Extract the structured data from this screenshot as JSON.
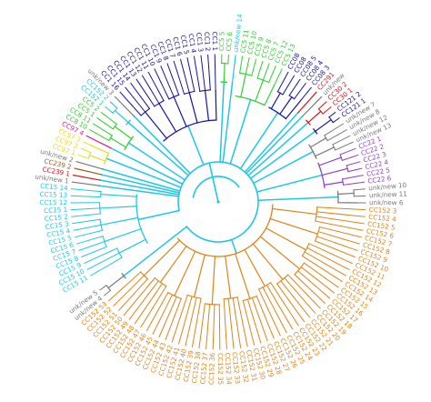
{
  "tree": {
    "colors": {
      "cyan": "#1fc7e6",
      "green": "#2fcf2f",
      "navy": "#14149e",
      "red": "#d8161b",
      "magenta": "#d81b8f",
      "purple": "#8f3fd0",
      "gray": "#7a7a7a",
      "orange": "#e08318",
      "brown": "#a35a18",
      "yellow": "#e8dc20"
    },
    "clades": [
      {
        "color": "cyan",
        "labels": [
          "CC15 11",
          "CC15 10",
          "CC15 9",
          "CC15 8",
          "CC15 7",
          "CC15 6",
          "CC15 5",
          "CC15 4",
          "CC15 3",
          "CC15 2",
          "CC15 1",
          "CC15 12",
          "CC15 13",
          "CC15 14"
        ]
      },
      {
        "color": "gray",
        "labels": [
          "unk/new 1"
        ]
      },
      {
        "color": "red",
        "labels": [
          "CC239 1"
        ]
      },
      {
        "color": "brown",
        "labels": [
          "CC239 2"
        ]
      },
      {
        "color": "gray",
        "labels": [
          "unk/new 2"
        ]
      },
      {
        "color": "yellow",
        "labels": [
          "CC97 1",
          "CC97 2",
          "CC97 3"
        ]
      },
      {
        "color": "magenta",
        "labels": [
          "CC97 4"
        ]
      },
      {
        "color": "green",
        "labels": [
          "CC8 10",
          "CC8 11",
          "CC5 1",
          "CC5 2"
        ]
      },
      {
        "color": "cyan",
        "labels": [
          "CC152 1",
          "CC152 2"
        ]
      },
      {
        "color": "gray",
        "labels": [
          "unk/new 3"
        ]
      },
      {
        "color": "navy",
        "labels": [
          "CC1 16",
          "CC1 15",
          "CC1 14",
          "CC1 13",
          "CC1 12",
          "CC1 11",
          "CC1 10",
          "CC1 9",
          "CC1 8",
          "CC1 7",
          "CC1 6",
          "CC1 5",
          "CC1 4",
          "CC1 3",
          "CC1 2",
          "CC1 1"
        ]
      },
      {
        "color": "green",
        "labels": [
          "CC5 5",
          "CC5 6"
        ]
      },
      {
        "color": "cyan",
        "labels": [
          "unk/new 14"
        ]
      },
      {
        "color": "green",
        "labels": [
          "CC5 11",
          "CC5 10",
          "CC5 9",
          "CC5 8",
          "CC5 7",
          "CC5 12",
          "CC5 13"
        ]
      },
      {
        "color": "navy",
        "labels": [
          "CC08",
          "CC08",
          "CC08 5",
          "CC08 4",
          "CC08 3"
        ]
      },
      {
        "color": "red",
        "labels": [
          "CC291"
        ]
      },
      {
        "color": "gray",
        "labels": [
          "unk/new"
        ]
      },
      {
        "color": "red",
        "labels": [
          "CC30 2",
          "CC30 1"
        ]
      },
      {
        "color": "navy",
        "labels": [
          "CC121 2",
          "CC121 1"
        ]
      },
      {
        "color": "gray",
        "labels": [
          "unk/new 7",
          "unk/new 8",
          "unk/new 12",
          "unk/new 13"
        ]
      },
      {
        "color": "purple",
        "labels": [
          "CC22 1",
          "CC22 2",
          "CC22 3",
          "CC22 4",
          "CC22 5",
          "CC22 6"
        ]
      },
      {
        "color": "gray",
        "labels": [
          "unk/new 10",
          "unk/new 11",
          "unk/new 6"
        ]
      },
      {
        "color": "orange",
        "labels": [
          "CC152 3",
          "CC152 4",
          "CC152 5",
          "CC152 6",
          "CC152 7",
          "CC152 8",
          "CC152 9",
          "CC152 10",
          "CC152 11",
          "CC152 12",
          "CC152 13",
          "CC152 14",
          "CC152 15",
          "CC152 16",
          "CC152 17",
          "CC152 18",
          "CC152 19",
          "CC152 20",
          "CC152 21",
          "CC152 22",
          "CC152 23",
          "CC152 24",
          "CC152 25",
          "CC152 26",
          "CC152 27",
          "CC152 28",
          "CC152 29",
          "CC152 30",
          "CC152 31",
          "CC152 32",
          "CC152 33",
          "CC152 34",
          "CC152 35",
          "CC152 36",
          "CC152 37",
          "CC152 38",
          "CC152 39",
          "CC152 40",
          "CC152 41",
          "CC152 42",
          "CC152 43",
          "CC152 44",
          "CC152 45",
          "CC152 46",
          "CC152 47",
          "CC152 48",
          "CC152 49",
          "CC152 50",
          "CC152 51",
          "CC152 52",
          "CC152 53"
        ]
      },
      {
        "color": "gray",
        "labels": [
          "unk/new 4",
          "unk/new 5"
        ]
      }
    ]
  }
}
